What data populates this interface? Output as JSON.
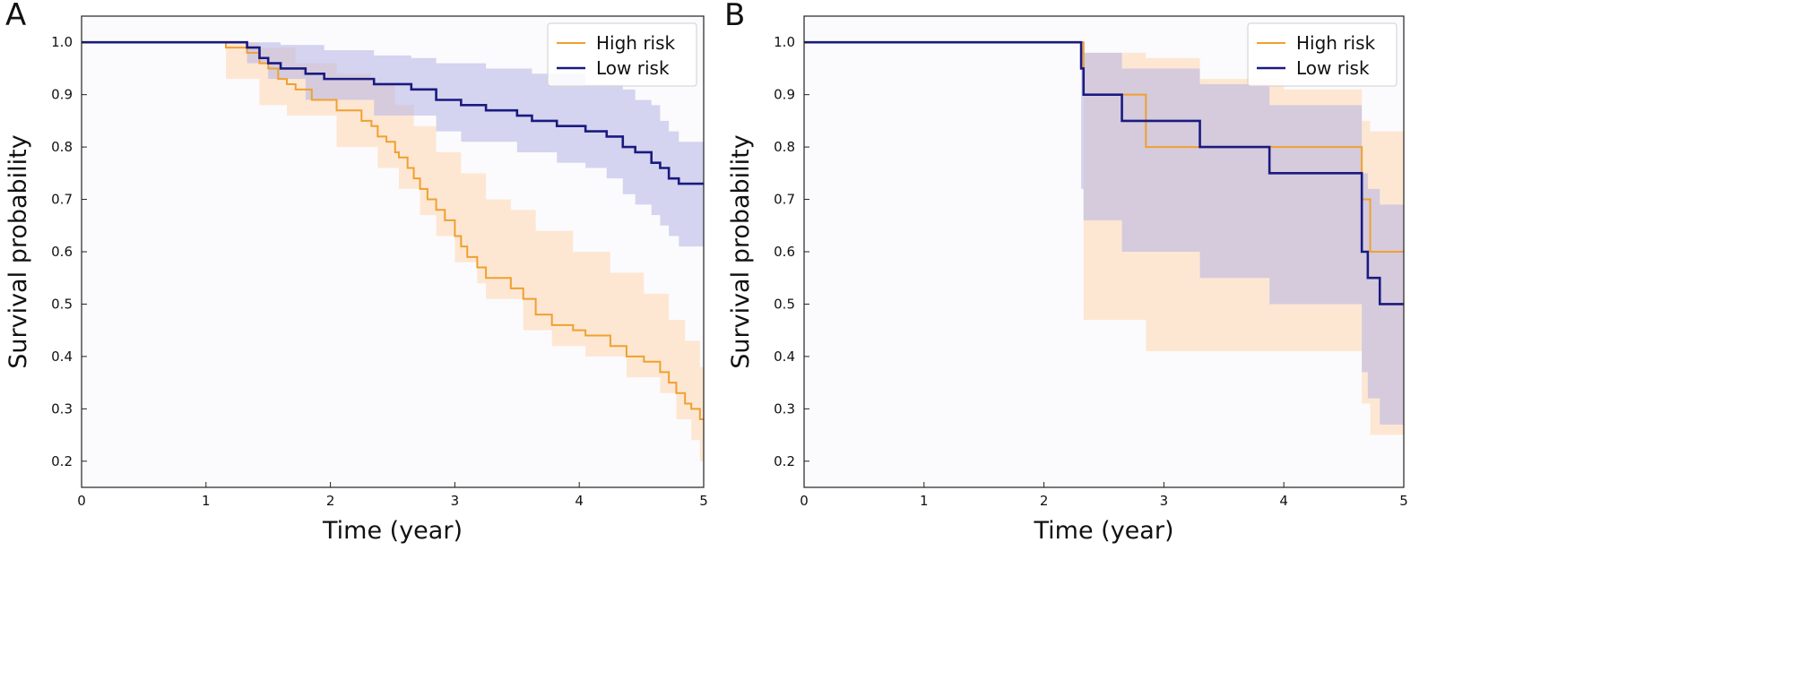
{
  "chart_data": [
    {
      "panel": "A",
      "type": "line",
      "step": true,
      "xlabel": "Time (year)",
      "ylabel": "Survival probability",
      "xlim": [
        0,
        5
      ],
      "ylim": [
        0.15,
        1.05
      ],
      "xticks": [
        "0",
        "1",
        "2",
        "3",
        "4",
        "5"
      ],
      "yticks": [
        "0.2",
        "0.3",
        "0.4",
        "0.5",
        "0.6",
        "0.7",
        "0.8",
        "0.9",
        "1.0"
      ],
      "legend": {
        "position": "top-right"
      },
      "series": [
        {
          "name": "High risk",
          "color": "#f0a030",
          "band_color": "#ffd7b0",
          "steps": [
            [
              0,
              1.0
            ],
            [
              1.16,
              0.99
            ],
            [
              1.33,
              0.98
            ],
            [
              1.43,
              0.96
            ],
            [
              1.5,
              0.95
            ],
            [
              1.58,
              0.93
            ],
            [
              1.65,
              0.92
            ],
            [
              1.72,
              0.91
            ],
            [
              1.85,
              0.89
            ],
            [
              2.05,
              0.87
            ],
            [
              2.25,
              0.85
            ],
            [
              2.33,
              0.84
            ],
            [
              2.38,
              0.82
            ],
            [
              2.45,
              0.81
            ],
            [
              2.52,
              0.79
            ],
            [
              2.55,
              0.78
            ],
            [
              2.62,
              0.76
            ],
            [
              2.67,
              0.74
            ],
            [
              2.72,
              0.72
            ],
            [
              2.78,
              0.7
            ],
            [
              2.85,
              0.68
            ],
            [
              2.92,
              0.66
            ],
            [
              3.0,
              0.63
            ],
            [
              3.05,
              0.61
            ],
            [
              3.1,
              0.59
            ],
            [
              3.18,
              0.57
            ],
            [
              3.25,
              0.55
            ],
            [
              3.45,
              0.53
            ],
            [
              3.55,
              0.51
            ],
            [
              3.65,
              0.48
            ],
            [
              3.78,
              0.46
            ],
            [
              3.95,
              0.45
            ],
            [
              4.05,
              0.44
            ],
            [
              4.25,
              0.42
            ],
            [
              4.38,
              0.4
            ],
            [
              4.52,
              0.39
            ],
            [
              4.65,
              0.37
            ],
            [
              4.72,
              0.35
            ],
            [
              4.78,
              0.33
            ],
            [
              4.85,
              0.31
            ],
            [
              4.9,
              0.3
            ],
            [
              4.97,
              0.28
            ],
            [
              5.0,
              0.28
            ]
          ],
          "ci_lower": [
            [
              0,
              1.0
            ],
            [
              1.16,
              0.93
            ],
            [
              1.43,
              0.88
            ],
            [
              1.65,
              0.86
            ],
            [
              2.05,
              0.8
            ],
            [
              2.38,
              0.76
            ],
            [
              2.55,
              0.72
            ],
            [
              2.72,
              0.67
            ],
            [
              2.85,
              0.63
            ],
            [
              3.0,
              0.58
            ],
            [
              3.18,
              0.54
            ],
            [
              3.25,
              0.51
            ],
            [
              3.55,
              0.45
            ],
            [
              3.78,
              0.42
            ],
            [
              4.05,
              0.4
            ],
            [
              4.38,
              0.36
            ],
            [
              4.65,
              0.33
            ],
            [
              4.78,
              0.28
            ],
            [
              4.9,
              0.24
            ],
            [
              4.97,
              0.2
            ],
            [
              5.0,
              0.19
            ]
          ],
          "ci_upper": [
            [
              0,
              1.0
            ],
            [
              1.16,
              1.0
            ],
            [
              1.43,
              0.99
            ],
            [
              1.72,
              0.96
            ],
            [
              2.05,
              0.94
            ],
            [
              2.33,
              0.92
            ],
            [
              2.52,
              0.88
            ],
            [
              2.67,
              0.84
            ],
            [
              2.85,
              0.79
            ],
            [
              3.05,
              0.75
            ],
            [
              3.25,
              0.7
            ],
            [
              3.45,
              0.68
            ],
            [
              3.65,
              0.64
            ],
            [
              3.95,
              0.6
            ],
            [
              4.25,
              0.56
            ],
            [
              4.52,
              0.52
            ],
            [
              4.72,
              0.47
            ],
            [
              4.85,
              0.43
            ],
            [
              4.97,
              0.38
            ],
            [
              5.0,
              0.38
            ]
          ]
        },
        {
          "name": "Low risk",
          "color": "#1a1a80",
          "band_color": "#b4b4e6",
          "steps": [
            [
              0,
              1.0
            ],
            [
              1.33,
              0.99
            ],
            [
              1.43,
              0.97
            ],
            [
              1.5,
              0.96
            ],
            [
              1.6,
              0.95
            ],
            [
              1.8,
              0.94
            ],
            [
              1.95,
              0.93
            ],
            [
              2.25,
              0.93
            ],
            [
              2.35,
              0.92
            ],
            [
              2.65,
              0.91
            ],
            [
              2.85,
              0.89
            ],
            [
              3.05,
              0.88
            ],
            [
              3.25,
              0.87
            ],
            [
              3.5,
              0.86
            ],
            [
              3.62,
              0.85
            ],
            [
              3.82,
              0.84
            ],
            [
              4.05,
              0.83
            ],
            [
              4.22,
              0.82
            ],
            [
              4.35,
              0.8
            ],
            [
              4.45,
              0.79
            ],
            [
              4.58,
              0.77
            ],
            [
              4.65,
              0.76
            ],
            [
              4.72,
              0.74
            ],
            [
              4.8,
              0.73
            ],
            [
              5.0,
              0.73
            ]
          ],
          "ci_lower": [
            [
              0,
              1.0
            ],
            [
              1.33,
              0.96
            ],
            [
              1.5,
              0.93
            ],
            [
              1.8,
              0.89
            ],
            [
              2.35,
              0.86
            ],
            [
              2.85,
              0.83
            ],
            [
              3.05,
              0.81
            ],
            [
              3.5,
              0.79
            ],
            [
              3.82,
              0.77
            ],
            [
              4.05,
              0.76
            ],
            [
              4.22,
              0.74
            ],
            [
              4.35,
              0.71
            ],
            [
              4.45,
              0.69
            ],
            [
              4.58,
              0.67
            ],
            [
              4.65,
              0.65
            ],
            [
              4.72,
              0.63
            ],
            [
              4.8,
              0.61
            ],
            [
              5.0,
              0.61
            ]
          ],
          "ci_upper": [
            [
              0,
              1.0
            ],
            [
              1.33,
              1.0
            ],
            [
              1.6,
              0.995
            ],
            [
              1.95,
              0.985
            ],
            [
              2.35,
              0.975
            ],
            [
              2.65,
              0.97
            ],
            [
              2.85,
              0.96
            ],
            [
              3.25,
              0.95
            ],
            [
              3.62,
              0.94
            ],
            [
              4.05,
              0.92
            ],
            [
              4.35,
              0.91
            ],
            [
              4.45,
              0.89
            ],
            [
              4.58,
              0.88
            ],
            [
              4.65,
              0.85
            ],
            [
              4.72,
              0.83
            ],
            [
              4.8,
              0.81
            ],
            [
              5.0,
              0.81
            ]
          ]
        }
      ]
    },
    {
      "panel": "B",
      "type": "line",
      "step": true,
      "xlabel": "Time (year)",
      "ylabel": "Survival probability",
      "xlim": [
        0,
        5
      ],
      "ylim": [
        0.15,
        1.05
      ],
      "xticks": [
        "0",
        "1",
        "2",
        "3",
        "4",
        "5"
      ],
      "yticks": [
        "0.2",
        "0.3",
        "0.4",
        "0.5",
        "0.6",
        "0.7",
        "0.8",
        "0.9",
        "1.0"
      ],
      "legend": {
        "position": "top-right"
      },
      "series": [
        {
          "name": "High risk",
          "color": "#f0a030",
          "band_color": "#ffd7b0",
          "steps": [
            [
              0,
              1.0
            ],
            [
              2.33,
              0.9
            ],
            [
              2.85,
              0.8
            ],
            [
              4.65,
              0.7
            ],
            [
              4.72,
              0.6
            ],
            [
              5.0,
              0.6
            ]
          ],
          "ci_lower": [
            [
              0,
              1.0
            ],
            [
              2.33,
              0.47
            ],
            [
              2.85,
              0.41
            ],
            [
              4.65,
              0.31
            ],
            [
              4.72,
              0.25
            ],
            [
              5.0,
              0.25
            ]
          ],
          "ci_upper": [
            [
              0,
              1.0
            ],
            [
              2.33,
              0.98
            ],
            [
              2.85,
              0.97
            ],
            [
              3.3,
              0.93
            ],
            [
              4.0,
              0.91
            ],
            [
              4.65,
              0.85
            ],
            [
              4.72,
              0.83
            ],
            [
              5.0,
              0.83
            ]
          ]
        },
        {
          "name": "Low risk",
          "color": "#1a1a80",
          "band_color": "#b4b4e6",
          "steps": [
            [
              0,
              1.0
            ],
            [
              2.31,
              0.95
            ],
            [
              2.33,
              0.9
            ],
            [
              2.65,
              0.85
            ],
            [
              3.3,
              0.8
            ],
            [
              3.88,
              0.75
            ],
            [
              4.65,
              0.6
            ],
            [
              4.7,
              0.55
            ],
            [
              4.8,
              0.5
            ],
            [
              5.0,
              0.5
            ]
          ],
          "ci_lower": [
            [
              0,
              1.0
            ],
            [
              2.31,
              0.72
            ],
            [
              2.33,
              0.66
            ],
            [
              2.65,
              0.6
            ],
            [
              3.3,
              0.55
            ],
            [
              3.88,
              0.5
            ],
            [
              4.65,
              0.37
            ],
            [
              4.7,
              0.32
            ],
            [
              4.8,
              0.27
            ],
            [
              5.0,
              0.27
            ]
          ],
          "ci_upper": [
            [
              0,
              1.0
            ],
            [
              2.31,
              0.99
            ],
            [
              2.33,
              0.98
            ],
            [
              2.65,
              0.95
            ],
            [
              3.3,
              0.92
            ],
            [
              3.88,
              0.88
            ],
            [
              4.65,
              0.75
            ],
            [
              4.7,
              0.72
            ],
            [
              4.8,
              0.69
            ],
            [
              5.0,
              0.69
            ]
          ]
        }
      ]
    }
  ]
}
